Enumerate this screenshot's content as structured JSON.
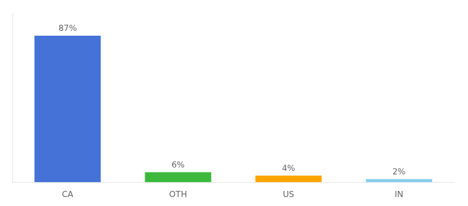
{
  "chart_data": {
    "type": "bar",
    "categories": [
      "CA",
      "OTH",
      "US",
      "IN"
    ],
    "values": [
      87,
      6,
      4,
      2
    ],
    "value_labels": [
      "87%",
      "6%",
      "4%",
      "2%"
    ],
    "data_labels": true,
    "colors": [
      "#4472D6",
      "#3CB93C",
      "#FFA500",
      "#87CEEB"
    ],
    "ylim": [
      0,
      100
    ],
    "grid": false,
    "tick_labels": "x"
  }
}
